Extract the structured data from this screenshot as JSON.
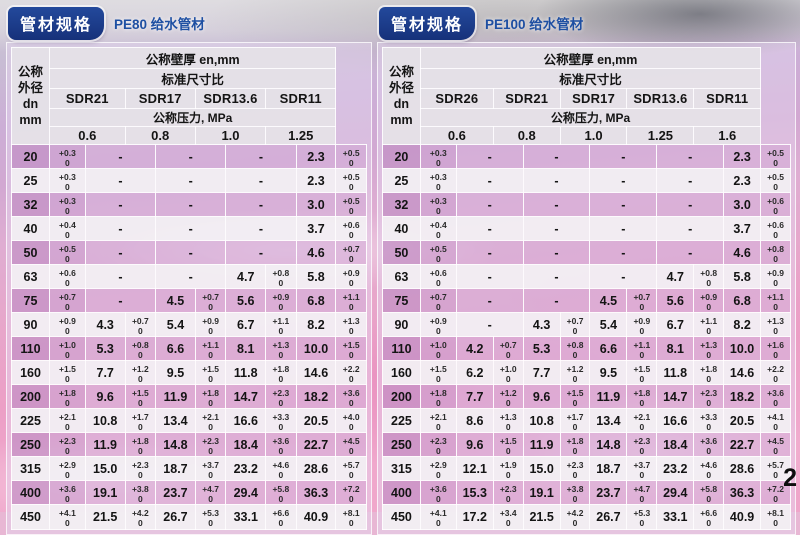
{
  "page": {
    "number": "2"
  },
  "colors": {
    "badge_navy": "#16317a",
    "subtitle_blue": "#1e4fa2",
    "row_tint_purple": "#b26eb2",
    "background_pink": "#ec9fc6"
  },
  "pe80": {
    "badge": "管材规格",
    "subtitle": "PE80 给水管材",
    "tolerance_lower": "0",
    "header": {
      "dn_line1": "公称外径",
      "dn_line2": "dn",
      "dn_line3": "mm",
      "wall_thickness_label": "公称壁厚 en,mm",
      "sdr_ratio_label": "标准尺寸比",
      "sdr_columns": [
        "SDR21",
        "SDR17",
        "SDR13.6",
        "SDR11"
      ],
      "pressure_label": "公称压力, MPa",
      "pressure_values": [
        "0.6",
        "0.8",
        "1.0",
        "1.25"
      ]
    },
    "rows": [
      {
        "dn": "20",
        "tol": "+0.3",
        "cells": [
          null,
          null,
          null,
          {
            "v": "2.3",
            "t": "+0.5"
          }
        ]
      },
      {
        "dn": "25",
        "tol": "+0.3",
        "cells": [
          null,
          null,
          null,
          {
            "v": "2.3",
            "t": "+0.5"
          }
        ]
      },
      {
        "dn": "32",
        "tol": "+0.3",
        "cells": [
          null,
          null,
          null,
          {
            "v": "3.0",
            "t": "+0.5"
          }
        ]
      },
      {
        "dn": "40",
        "tol": "+0.4",
        "cells": [
          null,
          null,
          null,
          {
            "v": "3.7",
            "t": "+0.6"
          }
        ]
      },
      {
        "dn": "50",
        "tol": "+0.5",
        "cells": [
          null,
          null,
          null,
          {
            "v": "4.6",
            "t": "+0.7"
          }
        ]
      },
      {
        "dn": "63",
        "tol": "+0.6",
        "cells": [
          null,
          null,
          {
            "v": "4.7",
            "t": "+0.8"
          },
          {
            "v": "5.8",
            "t": "+0.9"
          }
        ]
      },
      {
        "dn": "75",
        "tol": "+0.7",
        "cells": [
          null,
          {
            "v": "4.5",
            "t": "+0.7"
          },
          {
            "v": "5.6",
            "t": "+0.9"
          },
          {
            "v": "6.8",
            "t": "+1.1"
          }
        ]
      },
      {
        "dn": "90",
        "tol": "+0.9",
        "cells": [
          {
            "v": "4.3",
            "t": "+0.7"
          },
          {
            "v": "5.4",
            "t": "+0.9"
          },
          {
            "v": "6.7",
            "t": "+1.1"
          },
          {
            "v": "8.2",
            "t": "+1.3"
          }
        ]
      },
      {
        "dn": "110",
        "tol": "+1.0",
        "cells": [
          {
            "v": "5.3",
            "t": "+0.8"
          },
          {
            "v": "6.6",
            "t": "+1.1"
          },
          {
            "v": "8.1",
            "t": "+1.3"
          },
          {
            "v": "10.0",
            "t": "+1.5"
          }
        ]
      },
      {
        "dn": "160",
        "tol": "+1.5",
        "cells": [
          {
            "v": "7.7",
            "t": "+1.2"
          },
          {
            "v": "9.5",
            "t": "+1.5"
          },
          {
            "v": "11.8",
            "t": "+1.8"
          },
          {
            "v": "14.6",
            "t": "+2.2"
          }
        ]
      },
      {
        "dn": "200",
        "tol": "+1.8",
        "cells": [
          {
            "v": "9.6",
            "t": "+1.5"
          },
          {
            "v": "11.9",
            "t": "+1.8"
          },
          {
            "v": "14.7",
            "t": "+2.3"
          },
          {
            "v": "18.2",
            "t": "+3.6"
          }
        ]
      },
      {
        "dn": "225",
        "tol": "+2.1",
        "cells": [
          {
            "v": "10.8",
            "t": "+1.7"
          },
          {
            "v": "13.4",
            "t": "+2.1"
          },
          {
            "v": "16.6",
            "t": "+3.3"
          },
          {
            "v": "20.5",
            "t": "+4.0"
          }
        ]
      },
      {
        "dn": "250",
        "tol": "+2.3",
        "cells": [
          {
            "v": "11.9",
            "t": "+1.8"
          },
          {
            "v": "14.8",
            "t": "+2.3"
          },
          {
            "v": "18.4",
            "t": "+3.6"
          },
          {
            "v": "22.7",
            "t": "+4.5"
          }
        ]
      },
      {
        "dn": "315",
        "tol": "+2.9",
        "cells": [
          {
            "v": "15.0",
            "t": "+2.3"
          },
          {
            "v": "18.7",
            "t": "+3.7"
          },
          {
            "v": "23.2",
            "t": "+4.6"
          },
          {
            "v": "28.6",
            "t": "+5.7"
          }
        ]
      },
      {
        "dn": "400",
        "tol": "+3.6",
        "cells": [
          {
            "v": "19.1",
            "t": "+3.8"
          },
          {
            "v": "23.7",
            "t": "+4.7"
          },
          {
            "v": "29.4",
            "t": "+5.8"
          },
          {
            "v": "36.3",
            "t": "+7.2"
          }
        ]
      },
      {
        "dn": "450",
        "tol": "+4.1",
        "cells": [
          {
            "v": "21.5",
            "t": "+4.2"
          },
          {
            "v": "26.7",
            "t": "+5.3"
          },
          {
            "v": "33.1",
            "t": "+6.6"
          },
          {
            "v": "40.9",
            "t": "+8.1"
          }
        ]
      }
    ]
  },
  "pe100": {
    "badge": "管材规格",
    "subtitle": "PE100 给水管材",
    "tolerance_lower": "0",
    "header": {
      "dn_line1": "公称外径",
      "dn_line2": "dn",
      "dn_line3": "mm",
      "wall_thickness_label": "公称壁厚 en,mm",
      "sdr_ratio_label": "标准尺寸比",
      "sdr_columns": [
        "SDR26",
        "SDR21",
        "SDR17",
        "SDR13.6",
        "SDR11"
      ],
      "pressure_label": "公称压力, MPa",
      "pressure_values": [
        "0.6",
        "0.8",
        "1.0",
        "1.25",
        "1.6"
      ]
    },
    "rows": [
      {
        "dn": "20",
        "tol": "+0.3",
        "cells": [
          null,
          null,
          null,
          null,
          {
            "v": "2.3",
            "t": "+0.5"
          }
        ]
      },
      {
        "dn": "25",
        "tol": "+0.3",
        "cells": [
          null,
          null,
          null,
          null,
          {
            "v": "2.3",
            "t": "+0.5"
          }
        ]
      },
      {
        "dn": "32",
        "tol": "+0.3",
        "cells": [
          null,
          null,
          null,
          null,
          {
            "v": "3.0",
            "t": "+0.6"
          }
        ]
      },
      {
        "dn": "40",
        "tol": "+0.4",
        "cells": [
          null,
          null,
          null,
          null,
          {
            "v": "3.7",
            "t": "+0.6"
          }
        ]
      },
      {
        "dn": "50",
        "tol": "+0.5",
        "cells": [
          null,
          null,
          null,
          null,
          {
            "v": "4.6",
            "t": "+0.8"
          }
        ]
      },
      {
        "dn": "63",
        "tol": "+0.6",
        "cells": [
          null,
          null,
          null,
          {
            "v": "4.7",
            "t": "+0.8"
          },
          {
            "v": "5.8",
            "t": "+0.9"
          }
        ]
      },
      {
        "dn": "75",
        "tol": "+0.7",
        "cells": [
          null,
          null,
          {
            "v": "4.5",
            "t": "+0.7"
          },
          {
            "v": "5.6",
            "t": "+0.9"
          },
          {
            "v": "6.8",
            "t": "+1.1"
          }
        ]
      },
      {
        "dn": "90",
        "tol": "+0.9",
        "cells": [
          null,
          {
            "v": "4.3",
            "t": "+0.7"
          },
          {
            "v": "5.4",
            "t": "+0.9"
          },
          {
            "v": "6.7",
            "t": "+1.1"
          },
          {
            "v": "8.2",
            "t": "+1.3"
          }
        ]
      },
      {
        "dn": "110",
        "tol": "+1.0",
        "cells": [
          {
            "v": "4.2",
            "t": "+0.7"
          },
          {
            "v": "5.3",
            "t": "+0.8"
          },
          {
            "v": "6.6",
            "t": "+1.1"
          },
          {
            "v": "8.1",
            "t": "+1.3"
          },
          {
            "v": "10.0",
            "t": "+1.6"
          }
        ]
      },
      {
        "dn": "160",
        "tol": "+1.5",
        "cells": [
          {
            "v": "6.2",
            "t": "+1.0"
          },
          {
            "v": "7.7",
            "t": "+1.2"
          },
          {
            "v": "9.5",
            "t": "+1.5"
          },
          {
            "v": "11.8",
            "t": "+1.8"
          },
          {
            "v": "14.6",
            "t": "+2.2"
          }
        ]
      },
      {
        "dn": "200",
        "tol": "+1.8",
        "cells": [
          {
            "v": "7.7",
            "t": "+1.2"
          },
          {
            "v": "9.6",
            "t": "+1.5"
          },
          {
            "v": "11.9",
            "t": "+1.8"
          },
          {
            "v": "14.7",
            "t": "+2.3"
          },
          {
            "v": "18.2",
            "t": "+3.6"
          }
        ]
      },
      {
        "dn": "225",
        "tol": "+2.1",
        "cells": [
          {
            "v": "8.6",
            "t": "+1.3"
          },
          {
            "v": "10.8",
            "t": "+1.7"
          },
          {
            "v": "13.4",
            "t": "+2.1"
          },
          {
            "v": "16.6",
            "t": "+3.3"
          },
          {
            "v": "20.5",
            "t": "+4.1"
          }
        ]
      },
      {
        "dn": "250",
        "tol": "+2.3",
        "cells": [
          {
            "v": "9.6",
            "t": "+1.5"
          },
          {
            "v": "11.9",
            "t": "+1.8"
          },
          {
            "v": "14.8",
            "t": "+2.3"
          },
          {
            "v": "18.4",
            "t": "+3.6"
          },
          {
            "v": "22.7",
            "t": "+4.5"
          }
        ]
      },
      {
        "dn": "315",
        "tol": "+2.9",
        "cells": [
          {
            "v": "12.1",
            "t": "+1.9"
          },
          {
            "v": "15.0",
            "t": "+2.3"
          },
          {
            "v": "18.7",
            "t": "+3.7"
          },
          {
            "v": "23.2",
            "t": "+4.6"
          },
          {
            "v": "28.6",
            "t": "+5.7"
          }
        ]
      },
      {
        "dn": "400",
        "tol": "+3.6",
        "cells": [
          {
            "v": "15.3",
            "t": "+2.3"
          },
          {
            "v": "19.1",
            "t": "+3.8"
          },
          {
            "v": "23.7",
            "t": "+4.7"
          },
          {
            "v": "29.4",
            "t": "+5.8"
          },
          {
            "v": "36.3",
            "t": "+7.2"
          }
        ]
      },
      {
        "dn": "450",
        "tol": "+4.1",
        "cells": [
          {
            "v": "17.2",
            "t": "+3.4"
          },
          {
            "v": "21.5",
            "t": "+4.2"
          },
          {
            "v": "26.7",
            "t": "+5.3"
          },
          {
            "v": "33.1",
            "t": "+6.6"
          },
          {
            "v": "40.9",
            "t": "+8.1"
          }
        ]
      }
    ]
  }
}
